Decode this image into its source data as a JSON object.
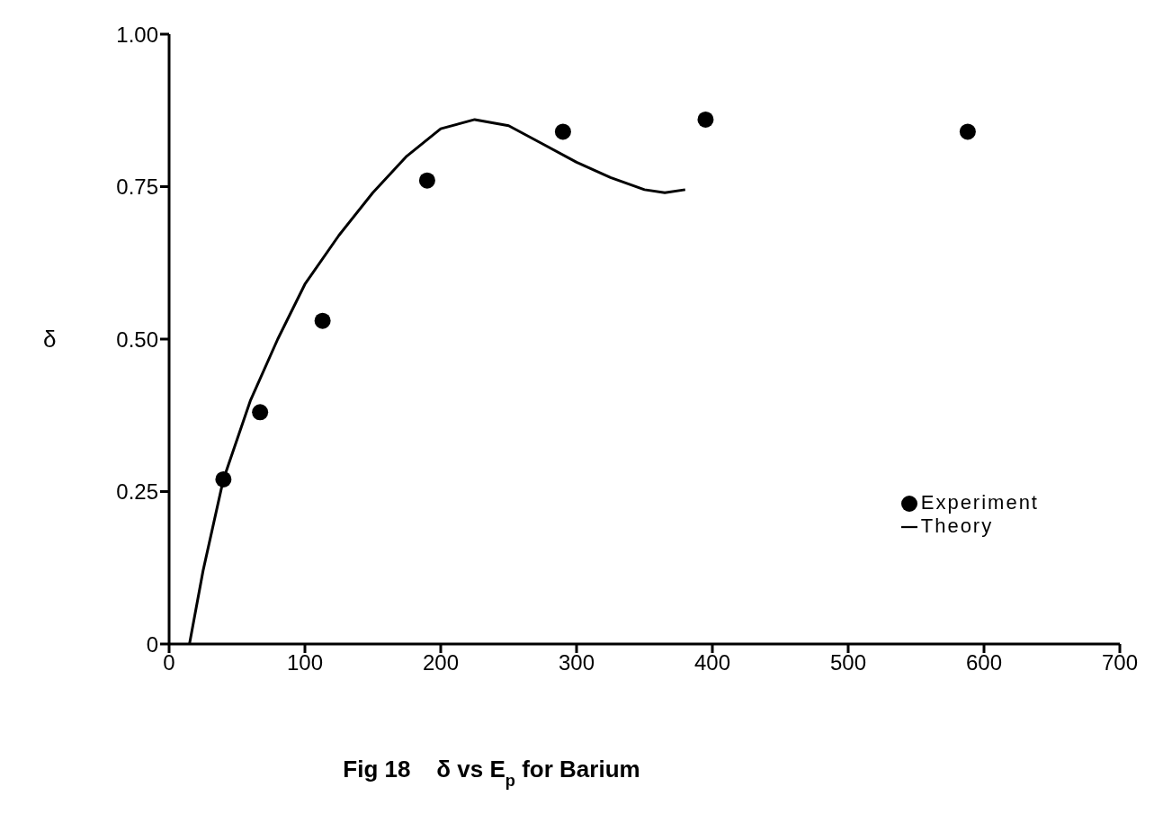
{
  "chart_data": {
    "type": "scatter",
    "title": "Fig 18    δ vs E$_{p}$ for Barium",
    "ylabel": "δ",
    "xlim": [
      0,
      700
    ],
    "xticks": [
      0,
      100,
      200,
      300,
      400,
      500,
      600,
      700
    ],
    "ylim": [
      0,
      1
    ],
    "yticks": [
      0,
      {
        "value": 0.25,
        "label": "0.25"
      },
      {
        "value": 0.5,
        "label": "0.50"
      },
      {
        "value": 0.75,
        "label": "0.75"
      },
      {
        "value": 1,
        "label": "1.00"
      }
    ],
    "grid": false,
    "legend": "bottom right",
    "series": [
      {
        "name": "Experiment",
        "marker": "circle",
        "color": "#000000",
        "x": [
          40,
          67,
          113,
          190,
          290,
          395,
          588
        ],
        "values": [
          0.27,
          0.38,
          0.53,
          0.76,
          0.84,
          0.86,
          0.84
        ]
      },
      {
        "name": "Theory",
        "type": "line",
        "marker": "none",
        "line_style": "solid",
        "color": "#000000",
        "x": [
          15,
          25,
          40,
          60,
          80,
          100,
          125,
          150,
          175,
          200,
          225,
          250,
          275,
          300,
          325,
          350,
          365,
          380
        ],
        "values": [
          0,
          0.12,
          0.27,
          0.4,
          0.5,
          0.59,
          0.67,
          0.74,
          0.8,
          0.845,
          0.86,
          0.85,
          0.82,
          0.79,
          0.765,
          0.745,
          0.74,
          0.745
        ]
      }
    ]
  }
}
